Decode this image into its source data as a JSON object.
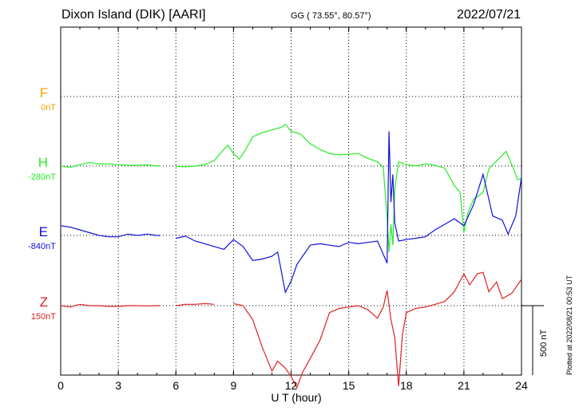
{
  "header": {
    "station": "Dixon Island (DIK)  [AARI]",
    "coords": "GG ( 73.55°,  80.57°)",
    "date": "2022/07/21"
  },
  "footer": {
    "plotted": "Plotted at 2022/08/21 00:53 UT"
  },
  "chart_data": {
    "type": "line",
    "xlabel": "U T (hour)",
    "xlim": [
      0,
      24
    ],
    "xticks": [
      0,
      3,
      6,
      9,
      12,
      15,
      18,
      21,
      24
    ],
    "scale_bar_label": "500 nT",
    "scale_bar_nT": 500,
    "series": [
      {
        "name": "F",
        "baseline_label": "0nT",
        "color": "#f0a500",
        "points": []
      },
      {
        "name": "H",
        "baseline_label": "-280nT",
        "color": "#22ee22",
        "points": [
          [
            0,
            -280
          ],
          [
            0.5,
            -290
          ],
          [
            1,
            -270
          ],
          [
            1.5,
            -255
          ],
          [
            2,
            -265
          ],
          [
            2.5,
            -265
          ],
          [
            3,
            -270
          ],
          [
            3.5,
            -275
          ],
          [
            4,
            -275
          ],
          [
            4.5,
            -272
          ],
          [
            5,
            -280
          ],
          [
            5.2,
            -280
          ],
          [
            6,
            -283
          ],
          [
            6.5,
            -285
          ],
          [
            7,
            -280
          ],
          [
            7.5,
            -270
          ],
          [
            8,
            -240
          ],
          [
            8.5,
            -160
          ],
          [
            8.7,
            -130
          ],
          [
            9,
            -190
          ],
          [
            9.3,
            -230
          ],
          [
            9.6,
            -170
          ],
          [
            10,
            -70
          ],
          [
            10.5,
            -40
          ],
          [
            11,
            -20
          ],
          [
            11.5,
            0
          ],
          [
            11.7,
            20
          ],
          [
            12,
            -30
          ],
          [
            12.5,
            -50
          ],
          [
            13,
            -120
          ],
          [
            13.5,
            -160
          ],
          [
            14,
            -190
          ],
          [
            14.5,
            -200
          ],
          [
            15,
            -195
          ],
          [
            15.5,
            -190
          ],
          [
            16,
            -225
          ],
          [
            16.5,
            -250
          ],
          [
            16.8,
            -290
          ],
          [
            17,
            -650
          ],
          [
            17.1,
            -900
          ],
          [
            17.2,
            -700
          ],
          [
            17.3,
            -850
          ],
          [
            17.4,
            -450
          ],
          [
            17.6,
            -250
          ],
          [
            18,
            -270
          ],
          [
            18.5,
            -280
          ],
          [
            19,
            -265
          ],
          [
            19.5,
            -275
          ],
          [
            20,
            -295
          ],
          [
            20.5,
            -420
          ],
          [
            20.8,
            -470
          ],
          [
            21,
            -760
          ],
          [
            21.2,
            -620
          ],
          [
            21.5,
            -520
          ],
          [
            22,
            -470
          ],
          [
            22.3,
            -300
          ],
          [
            22.8,
            -230
          ],
          [
            23.2,
            -175
          ],
          [
            23.5,
            -270
          ],
          [
            23.8,
            -380
          ],
          [
            24,
            -370
          ]
        ]
      },
      {
        "name": "E",
        "baseline_label": "-840nT",
        "color": "#1010dd",
        "points": [
          [
            0,
            -770
          ],
          [
            0.5,
            -780
          ],
          [
            1,
            -800
          ],
          [
            1.5,
            -820
          ],
          [
            2,
            -840
          ],
          [
            2.5,
            -850
          ],
          [
            3,
            -850
          ],
          [
            3.5,
            -830
          ],
          [
            4,
            -840
          ],
          [
            4.5,
            -830
          ],
          [
            5,
            -840
          ],
          [
            5.2,
            -840
          ],
          [
            6,
            -860
          ],
          [
            6.5,
            -845
          ],
          [
            7,
            -880
          ],
          [
            7.5,
            -900
          ],
          [
            8,
            -920
          ],
          [
            8.5,
            -940
          ],
          [
            9,
            -870
          ],
          [
            9.5,
            -920
          ],
          [
            10,
            -1020
          ],
          [
            10.5,
            -1010
          ],
          [
            11,
            -990
          ],
          [
            11.3,
            -960
          ],
          [
            11.7,
            -1250
          ],
          [
            12,
            -1170
          ],
          [
            12.3,
            -1050
          ],
          [
            13,
            -910
          ],
          [
            13.5,
            -900
          ],
          [
            14,
            -910
          ],
          [
            14.5,
            -920
          ],
          [
            15,
            -890
          ],
          [
            15.5,
            -900
          ],
          [
            16,
            -890
          ],
          [
            16.5,
            -880
          ],
          [
            17,
            -1040
          ],
          [
            17.1,
            -90
          ],
          [
            17.2,
            -600
          ],
          [
            17.3,
            -400
          ],
          [
            17.4,
            -750
          ],
          [
            17.6,
            -880
          ],
          [
            18,
            -870
          ],
          [
            18.5,
            -860
          ],
          [
            19,
            -850
          ],
          [
            19.5,
            -800
          ],
          [
            20,
            -760
          ],
          [
            20.5,
            -720
          ],
          [
            21,
            -770
          ],
          [
            21.5,
            -620
          ],
          [
            22,
            -400
          ],
          [
            22.5,
            -700
          ],
          [
            23,
            -730
          ],
          [
            23.3,
            -830
          ],
          [
            23.7,
            -700
          ],
          [
            24,
            -420
          ]
        ]
      },
      {
        "name": "Z",
        "baseline_label": "150nT",
        "color": "#e02020",
        "points": [
          [
            0,
            150
          ],
          [
            0.5,
            140
          ],
          [
            1,
            160
          ],
          [
            1.5,
            150
          ],
          [
            2,
            150
          ],
          [
            2.5,
            145
          ],
          [
            3,
            145
          ],
          [
            3.5,
            150
          ],
          [
            4,
            150
          ],
          [
            4.5,
            148
          ],
          [
            5,
            150
          ],
          [
            5.2,
            150
          ],
          [
            6,
            150
          ],
          [
            6.5,
            160
          ],
          [
            7,
            160
          ],
          [
            7.5,
            165
          ],
          [
            8,
            160
          ],
          [
            9,
            165
          ],
          [
            9.5,
            150
          ],
          [
            10,
            50
          ],
          [
            10.5,
            -150
          ],
          [
            11,
            -320
          ],
          [
            11.3,
            -250
          ],
          [
            11.7,
            -300
          ],
          [
            12,
            -360
          ],
          [
            12.3,
            -440
          ],
          [
            12.6,
            -330
          ],
          [
            13,
            -230
          ],
          [
            13.5,
            -100
          ],
          [
            14,
            100
          ],
          [
            14.5,
            130
          ],
          [
            15,
            140
          ],
          [
            15.5,
            150
          ],
          [
            16,
            120
          ],
          [
            16.5,
            60
          ],
          [
            16.8,
            140
          ],
          [
            17,
            260
          ],
          [
            17.2,
            50
          ],
          [
            17.4,
            -80
          ],
          [
            17.6,
            -430
          ],
          [
            17.8,
            -60
          ],
          [
            18,
            100
          ],
          [
            18.5,
            130
          ],
          [
            19,
            140
          ],
          [
            19.5,
            160
          ],
          [
            20,
            180
          ],
          [
            20.5,
            250
          ],
          [
            21,
            380
          ],
          [
            21.3,
            300
          ],
          [
            21.7,
            380
          ],
          [
            22,
            390
          ],
          [
            22.3,
            250
          ],
          [
            22.7,
            320
          ],
          [
            23,
            200
          ],
          [
            23.5,
            240
          ],
          [
            24,
            340
          ]
        ]
      }
    ]
  }
}
